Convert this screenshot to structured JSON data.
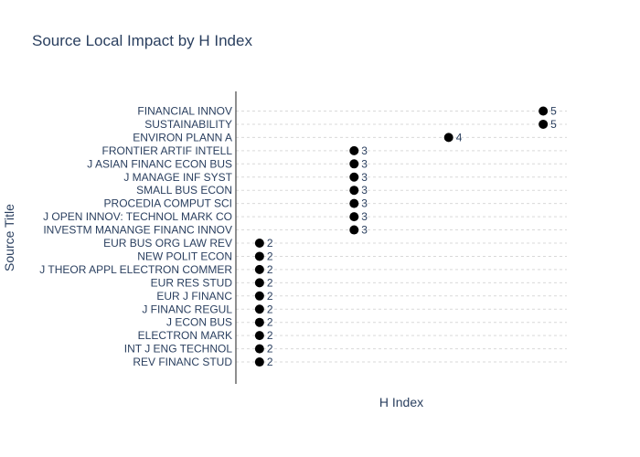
{
  "chart_data": {
    "type": "scatter",
    "title": "Source Local Impact by H Index",
    "xlabel": "H Index",
    "ylabel": "Source Title",
    "xlim": [
      1.75,
      5.25
    ],
    "grid": "horizontal dotted",
    "marker_color": "#000000",
    "text_color": "#2a3f5f",
    "categories": [
      "FINANCIAL INNOV",
      "SUSTAINABILITY",
      "ENVIRON PLANN A",
      "FRONTIER ARTIF INTELL",
      "J ASIAN FINANC ECON BUS",
      "J MANAGE INF SYST",
      "SMALL BUS ECON",
      "PROCEDIA COMPUT SCI",
      "J OPEN INNOV: TECHNOL MARK CO",
      "INVESTM MANANGE FINANC INNOV",
      "EUR BUS ORG LAW REV",
      "NEW POLIT ECON",
      "J THEOR APPL ELECTRON COMMER",
      "EUR RES STUD",
      "EUR J FINANC",
      "J FINANC REGUL",
      "J ECON BUS",
      "ELECTRON MARK",
      "INT J ENG TECHNOL",
      "REV FINANC STUD"
    ],
    "values": [
      5,
      5,
      4,
      3,
      3,
      3,
      3,
      3,
      3,
      3,
      2,
      2,
      2,
      2,
      2,
      2,
      2,
      2,
      2,
      2
    ]
  }
}
